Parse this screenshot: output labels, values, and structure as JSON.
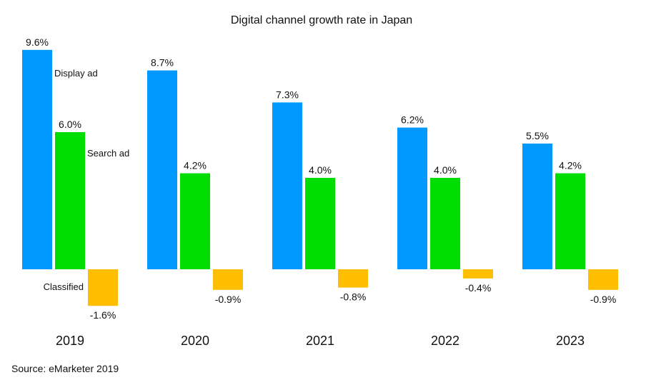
{
  "chart_data": {
    "type": "bar",
    "title": "Digital channel growth rate in Japan",
    "categories": [
      "2019",
      "2020",
      "2021",
      "2022",
      "2023"
    ],
    "series": [
      {
        "name": "Display ad",
        "color": "#0099ff",
        "values": [
          9.6,
          8.7,
          7.3,
          6.2,
          5.5
        ],
        "labels": [
          "9.6%",
          "8.7%",
          "7.3%",
          "6.2%",
          "5.5%"
        ]
      },
      {
        "name": "Search ad",
        "color": "#00dd00",
        "values": [
          6.0,
          4.2,
          4.0,
          4.0,
          4.2
        ],
        "labels": [
          "6.0%",
          "4.2%",
          "4.0%",
          "4.0%",
          "4.2%"
        ]
      },
      {
        "name": "Classified",
        "color": "#ffbf00",
        "values": [
          -1.6,
          -0.9,
          -0.8,
          -0.4,
          -0.9
        ],
        "labels": [
          "-1.6%",
          "-0.9%",
          "-0.8%",
          "-0.4%",
          "-0.9%"
        ]
      }
    ],
    "unit": "%",
    "source": "Source: eMarketer 2019",
    "grid": false
  }
}
